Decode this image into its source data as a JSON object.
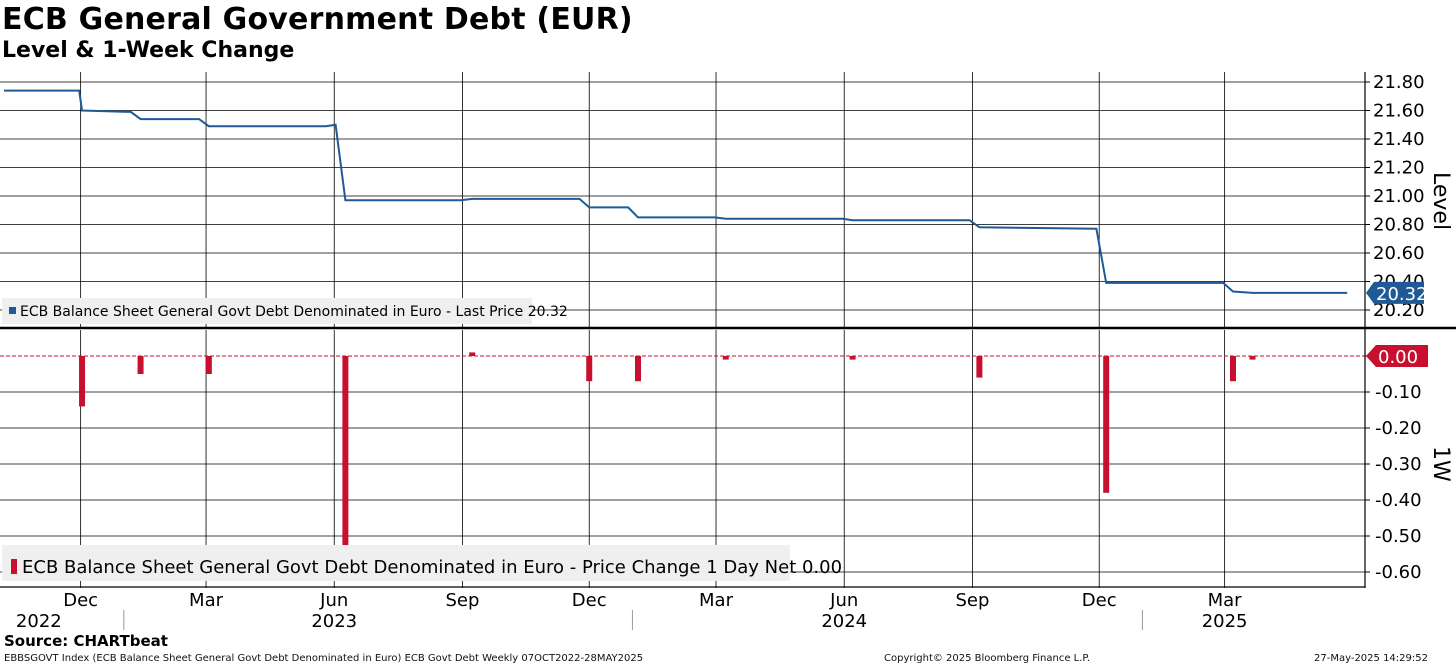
{
  "header": {
    "title": "ECB General Government Debt (EUR)",
    "subtitle": "Level & 1-Week Change"
  },
  "footer": {
    "source": "Source: CHARTbeat",
    "left": "EBBSGOVT Index (ECB Balance Sheet General Govt Debt Denominated in Euro) ECB Govt Debt  Weekly 07OCT2022-28MAY2025",
    "middle": "Copyright© 2025 Bloomberg Finance L.P.",
    "right": "27-May-2025 14:29:52"
  },
  "colors": {
    "level_line": "#1f5a96",
    "change_bar": "#c8102e",
    "grid": "#000000",
    "legend_bg": "#efefef"
  },
  "chart_data": [
    {
      "type": "line",
      "panel": "top",
      "legend": "ECB Balance Sheet General Govt Debt Denominated in Euro - Last Price 20.32",
      "axis_title": "Level",
      "last_value_label": "20.32",
      "yticks": [
        "21.80",
        "21.60",
        "21.40",
        "21.20",
        "21.00",
        "20.80",
        "20.60",
        "20.40",
        "20.20"
      ],
      "ylim": [
        20.2,
        21.8
      ],
      "grid": true,
      "x_date_range": [
        "2022-10-07",
        "2025-05-28"
      ],
      "series": [
        {
          "x": [
            "2022-10-07",
            "2022-11-30",
            "2022-12-02",
            "2023-01-06",
            "2023-01-13",
            "2023-02-24",
            "2023-03-03",
            "2023-05-26",
            "2023-06-02",
            "2023-06-09",
            "2023-08-31",
            "2023-09-08",
            "2023-11-24",
            "2023-12-01",
            "2023-12-29",
            "2024-01-05",
            "2024-02-29",
            "2024-03-08",
            "2024-05-31",
            "2024-06-07",
            "2024-08-30",
            "2024-09-06",
            "2024-11-29",
            "2024-12-06",
            "2025-02-28",
            "2025-03-07",
            "2025-03-21",
            "2025-05-28"
          ],
          "values": [
            21.74,
            21.74,
            21.6,
            21.59,
            21.54,
            21.54,
            21.49,
            21.49,
            21.5,
            20.97,
            20.97,
            20.98,
            20.98,
            20.92,
            20.92,
            20.85,
            20.85,
            20.84,
            20.84,
            20.83,
            20.83,
            20.78,
            20.77,
            20.39,
            20.39,
            20.33,
            20.32,
            20.32
          ]
        }
      ]
    },
    {
      "type": "bar",
      "panel": "bottom",
      "legend": "ECB Balance Sheet General Govt Debt Denominated in Euro - Price Change 1 Day Net 0.00",
      "axis_title": "1W",
      "last_value_label": "0.00",
      "yticks": [
        "0.00",
        "-0.10",
        "-0.20",
        "-0.30",
        "-0.40",
        "-0.50",
        "-0.60"
      ],
      "ylim": [
        -0.6,
        0.0
      ],
      "grid": true,
      "series": [
        {
          "x": [
            "2022-12-02",
            "2023-01-13",
            "2023-03-03",
            "2023-06-09",
            "2023-09-08",
            "2023-12-01",
            "2024-01-05",
            "2024-03-08",
            "2024-06-07",
            "2024-09-06",
            "2024-12-06",
            "2025-03-07",
            "2025-03-21"
          ],
          "values": [
            -0.14,
            -0.05,
            -0.05,
            -0.53,
            0.01,
            -0.07,
            -0.07,
            -0.01,
            -0.01,
            -0.06,
            -0.38,
            -0.07,
            -0.01
          ]
        }
      ]
    }
  ],
  "x_axis": {
    "month_labels": [
      {
        "label": "Dec",
        "date": "2022-12-01"
      },
      {
        "label": "Mar",
        "date": "2023-03-01"
      },
      {
        "label": "Jun",
        "date": "2023-06-01"
      },
      {
        "label": "Sep",
        "date": "2023-09-01"
      },
      {
        "label": "Dec",
        "date": "2023-12-01"
      },
      {
        "label": "Mar",
        "date": "2024-03-01"
      },
      {
        "label": "Jun",
        "date": "2024-06-01"
      },
      {
        "label": "Sep",
        "date": "2024-09-01"
      },
      {
        "label": "Dec",
        "date": "2024-12-01"
      },
      {
        "label": "Mar",
        "date": "2025-03-01"
      }
    ],
    "year_labels": [
      {
        "label": "2022",
        "date": "2022-11-01"
      },
      {
        "label": "2023",
        "date": "2023-06-01"
      },
      {
        "label": "2024",
        "date": "2024-06-01"
      },
      {
        "label": "2025",
        "date": "2025-03-01"
      }
    ],
    "year_boundaries": [
      "2023-01-01",
      "2024-01-01",
      "2025-01-01"
    ]
  }
}
